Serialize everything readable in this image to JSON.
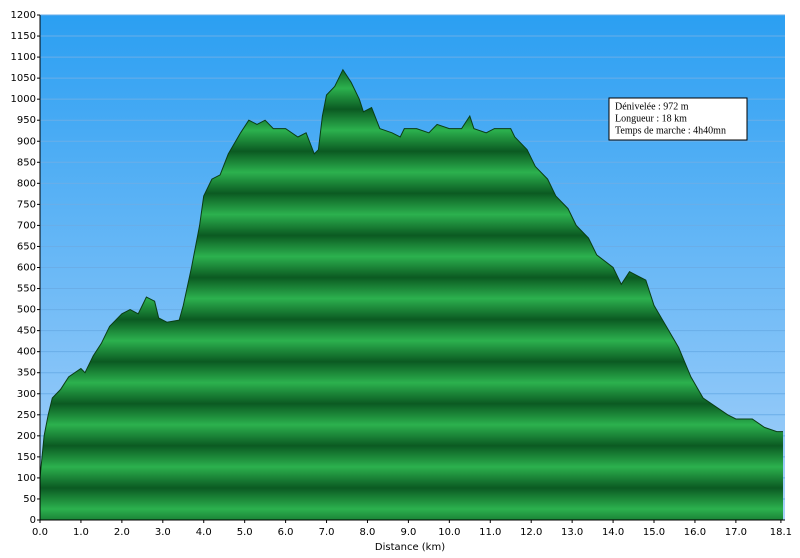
{
  "chart_data": {
    "type": "area",
    "x_label": "Distance   (km)",
    "annotation": [
      "Dénivelée : 972 m",
      "Longueur : 18 km",
      "Temps de marche : 4h40mn"
    ],
    "x": [
      0.0,
      0.1,
      0.2,
      0.3,
      0.5,
      0.7,
      1.0,
      1.1,
      1.3,
      1.5,
      1.7,
      2.0,
      2.2,
      2.4,
      2.6,
      2.8,
      2.9,
      3.1,
      3.4,
      3.5,
      3.7,
      3.9,
      4.0,
      4.2,
      4.4,
      4.6,
      4.9,
      5.1,
      5.3,
      5.5,
      5.7,
      6.0,
      6.3,
      6.5,
      6.7,
      6.8,
      6.9,
      7.0,
      7.2,
      7.4,
      7.6,
      7.8,
      7.9,
      8.1,
      8.3,
      8.6,
      8.8,
      8.9,
      9.2,
      9.5,
      9.7,
      10.0,
      10.3,
      10.5,
      10.6,
      10.9,
      11.1,
      11.5,
      11.6,
      11.9,
      12.1,
      12.4,
      12.6,
      12.9,
      13.1,
      13.4,
      13.6,
      14.0,
      14.2,
      14.4,
      14.8,
      15.0,
      15.3,
      15.6,
      15.9,
      16.2,
      16.5,
      16.8,
      17.0,
      17.4,
      17.7,
      18.0,
      18.15
    ],
    "values": [
      100,
      200,
      250,
      290,
      310,
      340,
      360,
      350,
      390,
      420,
      460,
      490,
      500,
      490,
      530,
      520,
      480,
      470,
      475,
      510,
      600,
      700,
      770,
      810,
      820,
      870,
      920,
      950,
      940,
      950,
      930,
      930,
      910,
      920,
      870,
      880,
      960,
      1010,
      1030,
      1070,
      1040,
      1000,
      970,
      980,
      930,
      920,
      910,
      930,
      930,
      920,
      940,
      930,
      930,
      960,
      930,
      920,
      930,
      930,
      910,
      880,
      840,
      810,
      770,
      740,
      700,
      670,
      630,
      600,
      560,
      590,
      570,
      510,
      460,
      410,
      340,
      290,
      270,
      250,
      240,
      240,
      220,
      210,
      210
    ],
    "color": "#1a9a3c",
    "xlim": [
      0,
      18.2
    ],
    "ylim": [
      0,
      1200
    ],
    "xticks": [
      {
        "value": 0,
        "label": "0.0"
      },
      {
        "value": 1,
        "label": "1.0"
      },
      {
        "value": 2,
        "label": "2.0"
      },
      {
        "value": 3,
        "label": "3.0"
      },
      {
        "value": 4,
        "label": "4.0"
      },
      {
        "value": 5,
        "label": "5.0"
      },
      {
        "value": 6,
        "label": "6.0"
      },
      {
        "value": 7,
        "label": "7.0"
      },
      {
        "value": 8,
        "label": "8.0"
      },
      {
        "value": 9,
        "label": "9.0"
      },
      {
        "value": 10,
        "label": "10.0"
      },
      {
        "value": 11,
        "label": "11.0"
      },
      {
        "value": 12,
        "label": "12.0"
      },
      {
        "value": 13,
        "label": "13.0"
      },
      {
        "value": 14,
        "label": "14.0"
      },
      {
        "value": 15,
        "label": "15.0"
      },
      {
        "value": 16,
        "label": "16.0"
      },
      {
        "value": 17,
        "label": "17.0"
      },
      18.1
    ],
    "yticks": [
      0,
      50,
      100,
      150,
      200,
      250,
      300,
      350,
      400,
      450,
      500,
      550,
      600,
      650,
      700,
      750,
      800,
      850,
      900,
      950,
      1000,
      1050,
      1100,
      1150,
      1200
    ],
    "grid": true
  }
}
